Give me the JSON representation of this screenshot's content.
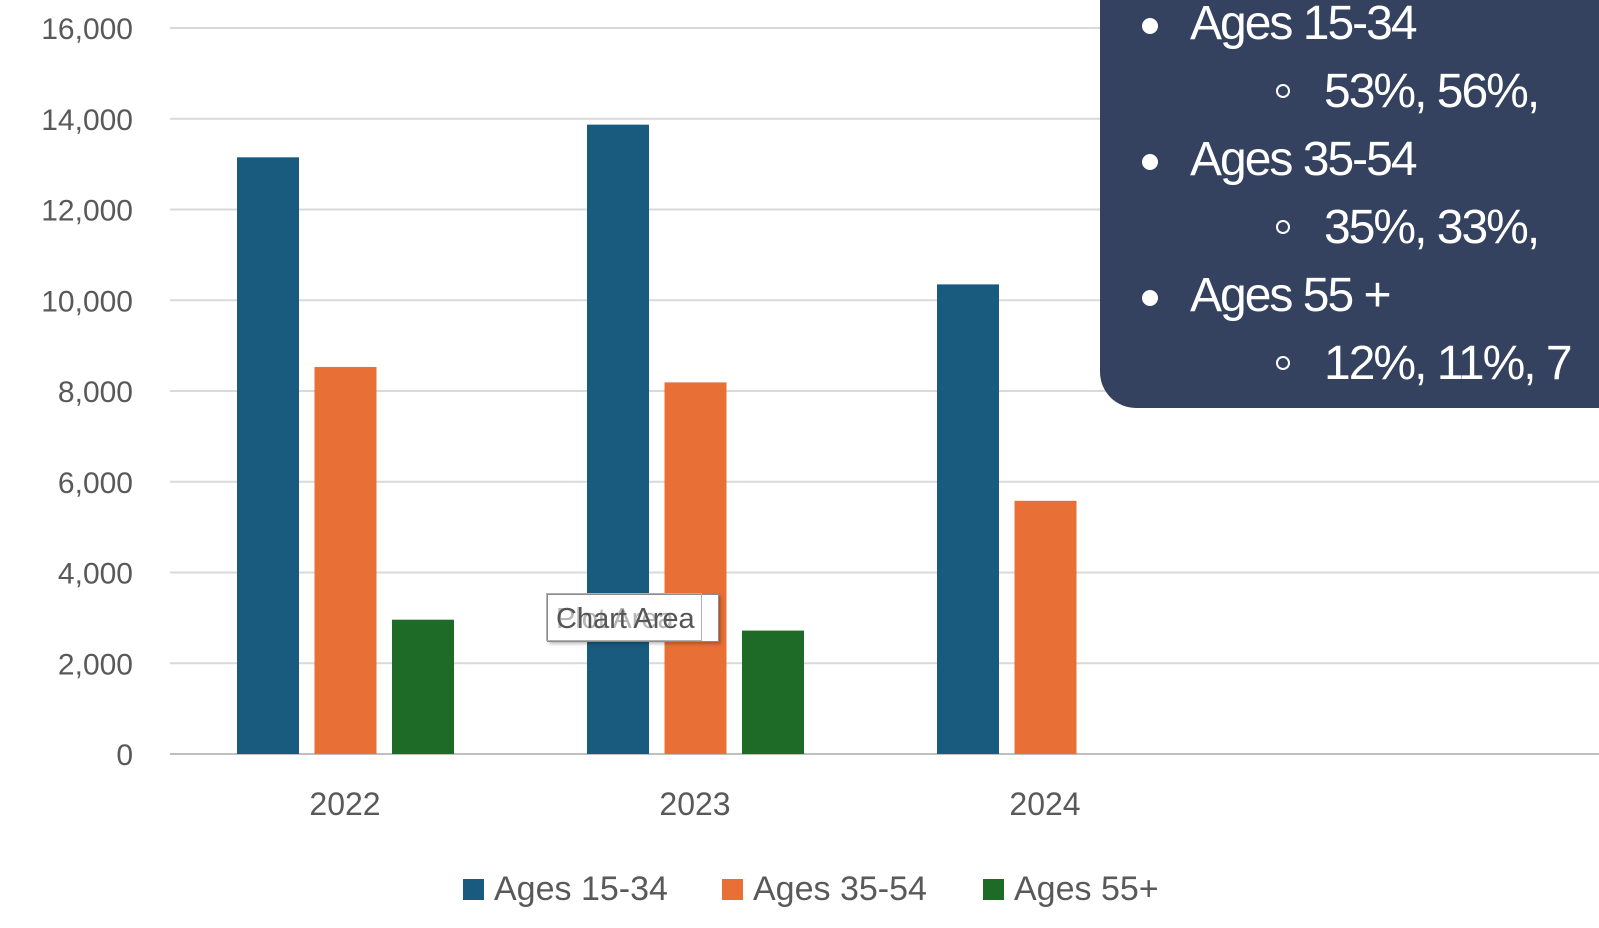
{
  "chart_data": {
    "type": "bar",
    "categories": [
      "2022",
      "2023",
      "2024"
    ],
    "series": [
      {
        "name": "Ages 15-34",
        "values": [
          13150,
          13870,
          10350
        ],
        "color": "#185b7f"
      },
      {
        "name": "Ages 35-54",
        "values": [
          8530,
          8190,
          5580
        ],
        "color": "#e86f35"
      },
      {
        "name": "Ages 55+",
        "values": [
          2960,
          2720,
          null
        ],
        "color": "#1d6b27"
      }
    ],
    "ylim": [
      0,
      16000
    ],
    "yticks": [
      0,
      2000,
      4000,
      6000,
      8000,
      10000,
      12000,
      14000,
      16000
    ],
    "ytick_labels": [
      "0",
      "2,000",
      "4,000",
      "6,000",
      "8,000",
      "10,000",
      "12,000",
      "14,000",
      "16,000"
    ],
    "grid": true,
    "legend_position": "bottom"
  },
  "tooltip": {
    "text": "Chart Area",
    "ghost_text": "Plot Area"
  },
  "panel": {
    "groups": [
      {
        "label": "Ages 15-34",
        "values": "53%,  56%,"
      },
      {
        "label": "Ages 35-54",
        "values": "35%,  33%,"
      },
      {
        "label": "Ages 55 +",
        "values": "12%, 11%, 7"
      }
    ]
  }
}
